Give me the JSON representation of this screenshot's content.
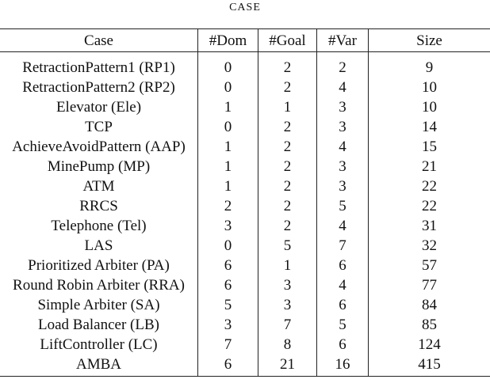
{
  "caption": "CASE",
  "table": {
    "headers": [
      "Case",
      "#Dom",
      "#Goal",
      "#Var",
      "Size"
    ],
    "rows": [
      [
        "RetractionPattern1 (RP1)",
        "0",
        "2",
        "2",
        "9"
      ],
      [
        "RetractionPattern2 (RP2)",
        "0",
        "2",
        "4",
        "10"
      ],
      [
        "Elevator (Ele)",
        "1",
        "1",
        "3",
        "10"
      ],
      [
        "TCP",
        "0",
        "2",
        "3",
        "14"
      ],
      [
        "AchieveAvoidPattern (AAP)",
        "1",
        "2",
        "4",
        "15"
      ],
      [
        "MinePump (MP)",
        "1",
        "2",
        "3",
        "21"
      ],
      [
        "ATM",
        "1",
        "2",
        "3",
        "22"
      ],
      [
        "RRCS",
        "2",
        "2",
        "5",
        "22"
      ],
      [
        "Telephone (Tel)",
        "3",
        "2",
        "4",
        "31"
      ],
      [
        "LAS",
        "0",
        "5",
        "7",
        "32"
      ],
      [
        "Prioritized Arbiter (PA)",
        "6",
        "1",
        "6",
        "57"
      ],
      [
        "Round Robin Arbiter (RRA)",
        "6",
        "3",
        "4",
        "77"
      ],
      [
        "Simple Arbiter (SA)",
        "5",
        "3",
        "6",
        "84"
      ],
      [
        "Load Balancer (LB)",
        "3",
        "7",
        "5",
        "85"
      ],
      [
        "LiftController (LC)",
        "7",
        "8",
        "6",
        "124"
      ],
      [
        "AMBA",
        "6",
        "21",
        "16",
        "415"
      ]
    ]
  }
}
